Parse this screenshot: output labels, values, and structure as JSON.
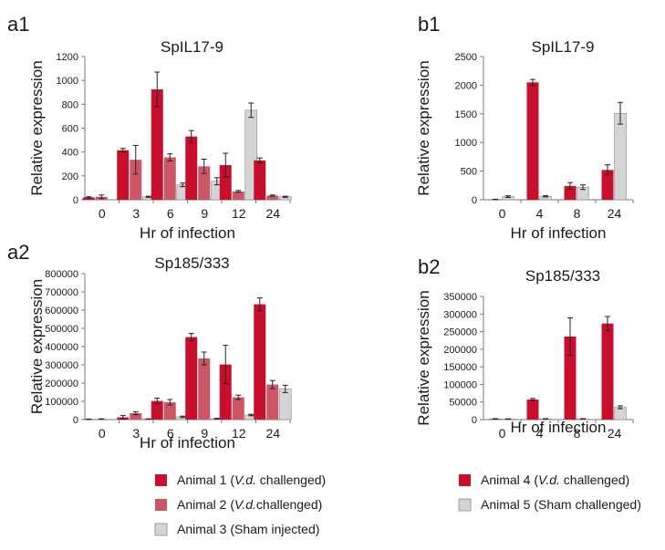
{
  "colors": {
    "animal1": "#c8102e",
    "animal2": "#cc5566",
    "sham": "#d4d4d4",
    "axis": "#7a7a7a",
    "error": "#222222"
  },
  "chart_data": [
    {
      "panel_label": "a1",
      "type": "bar",
      "title": "SpIL17-9",
      "xlabel": "Hr of infection",
      "ylabel": "Relative expression",
      "ylim": [
        0,
        1200
      ],
      "yticks": [
        "0",
        "200",
        "400",
        "600",
        "800",
        "1000",
        "1200"
      ],
      "categories": [
        "0",
        "3",
        "6",
        "9",
        "12",
        "24"
      ],
      "series": [
        {
          "name": "Animal 1 (V.d. challenged)",
          "color_key": "animal1",
          "values": [
            20,
            415,
            925,
            530,
            290,
            330
          ],
          "errors": [
            5,
            15,
            145,
            50,
            100,
            20
          ]
        },
        {
          "name": "Animal 2 (V.d.challenged)",
          "color_key": "animal2",
          "values": [
            25,
            335,
            355,
            280,
            70,
            35
          ],
          "errors": [
            15,
            120,
            30,
            60,
            8,
            5
          ]
        },
        {
          "name": "Animal 3 (Sham injected)",
          "color_key": "sham",
          "values": [
            0,
            25,
            125,
            155,
            750,
            25
          ],
          "errors": [
            0,
            5,
            15,
            30,
            60,
            5
          ]
        }
      ]
    },
    {
      "panel_label": "b1",
      "type": "bar",
      "title": "SpIL17-9",
      "xlabel": "Hr of infection",
      "ylabel": "Relative expression",
      "ylim": [
        0,
        2500
      ],
      "yticks": [
        "0",
        "500",
        "1000",
        "1500",
        "2000",
        "2500"
      ],
      "categories": [
        "0",
        "4",
        "8",
        "24"
      ],
      "series": [
        {
          "name": "Animal 4 (V.d. challenged)",
          "color_key": "animal1",
          "values": [
            5,
            2050,
            240,
            520
          ],
          "errors": [
            3,
            50,
            60,
            90
          ]
        },
        {
          "name": "Animal 5 (Sham challenged)",
          "color_key": "sham",
          "values": [
            55,
            60,
            220,
            1510
          ],
          "errors": [
            15,
            10,
            40,
            190
          ]
        }
      ]
    },
    {
      "panel_label": "a2",
      "type": "bar",
      "title": "Sp185/333",
      "xlabel": "Hr of infection",
      "ylabel": "Relative expression",
      "ylim": [
        0,
        800000
      ],
      "yticks": [
        "0",
        "100000",
        "200000",
        "300000",
        "400000",
        "500000",
        "600000",
        "700000",
        "800000"
      ],
      "categories": [
        "0",
        "3",
        "6",
        "9",
        "12",
        "24"
      ],
      "series": [
        {
          "name": "Animal 1 (V.d. challenged)",
          "color_key": "animal1",
          "values": [
            2000,
            12000,
            102000,
            452000,
            302000,
            632000
          ],
          "errors": [
            1000,
            10000,
            15000,
            20000,
            105000,
            35000
          ]
        },
        {
          "name": "Animal 2 (V.d.challenged)",
          "color_key": "animal2",
          "values": [
            3000,
            35000,
            95000,
            335000,
            122000,
            192000
          ],
          "errors": [
            1000,
            8000,
            15000,
            35000,
            12000,
            22000
          ]
        },
        {
          "name": "Animal 3 (Sham injected)",
          "color_key": "sham",
          "values": [
            0,
            3000,
            15000,
            5000,
            25000,
            168000
          ],
          "errors": [
            0,
            1000,
            4000,
            2000,
            4000,
            20000
          ]
        }
      ]
    },
    {
      "panel_label": "b2",
      "type": "bar",
      "title": "Sp185/333",
      "xlabel": "Hr of infection",
      "ylabel": "Relative expression",
      "ylim": [
        0,
        350000
      ],
      "yticks": [
        "0",
        "50000",
        "100000",
        "150000",
        "200000",
        "250000",
        "300000",
        "350000"
      ],
      "categories": [
        "0",
        "4",
        "8",
        "24"
      ],
      "series": [
        {
          "name": "Animal 4 (V.d. challenged)",
          "color_key": "animal1",
          "values": [
            2000,
            57000,
            236000,
            273000
          ],
          "errors": [
            500,
            3000,
            53000,
            20000
          ]
        },
        {
          "name": "Animal 5 (Sham challenged)",
          "color_key": "sham",
          "values": [
            1500,
            2000,
            2000,
            35000
          ],
          "errors": [
            500,
            500,
            500,
            4000
          ]
        }
      ]
    }
  ],
  "legend_left": [
    {
      "key": "animal1",
      "prefix": "Animal 1 (",
      "italic": "V.d.",
      "suffix": " challenged)"
    },
    {
      "key": "animal2",
      "prefix": "Animal 2 (",
      "italic": "V.d.",
      "suffix": "challenged)"
    },
    {
      "key": "sham",
      "prefix": "Animal 3 (Sham injected)",
      "italic": "",
      "suffix": ""
    }
  ],
  "legend_right": [
    {
      "key": "animal1",
      "prefix": "Animal 4 (",
      "italic": "V.d.",
      "suffix": " challenged)"
    },
    {
      "key": "sham",
      "prefix": "Animal 5 (Sham challenged)",
      "italic": "",
      "suffix": ""
    }
  ]
}
